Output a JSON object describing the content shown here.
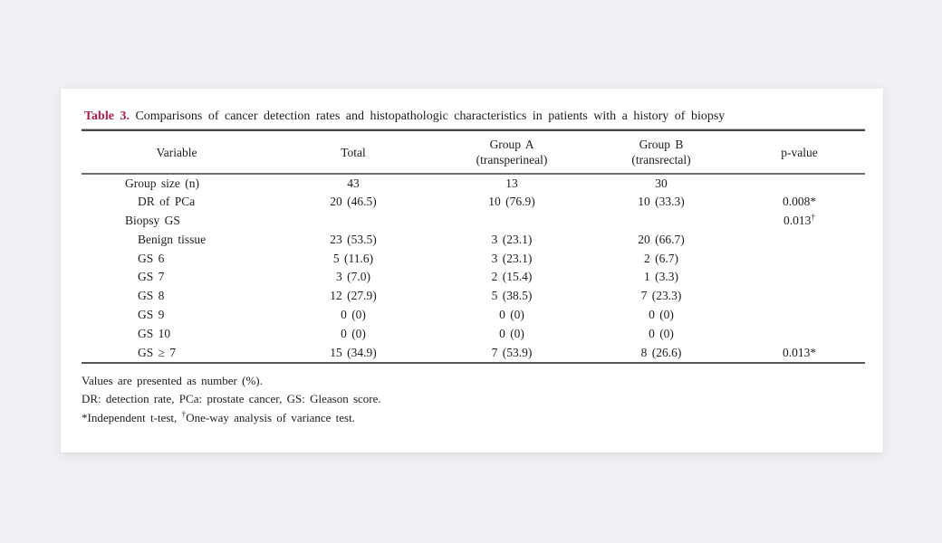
{
  "page": {
    "background_color": "#f0f1f4",
    "card_color": "#ffffff"
  },
  "table": {
    "title_label": "Table 3.",
    "title_label_color": "#ab1e47",
    "title_text": "Comparisons of cancer detection rates and histopathologic characteristics in patients with a history of biopsy",
    "columns": [
      {
        "label": "Variable",
        "sub": ""
      },
      {
        "label": "Total",
        "sub": ""
      },
      {
        "label": "Group A",
        "sub": "(transperineal)"
      },
      {
        "label": "Group B",
        "sub": "(transrectal)"
      },
      {
        "label": "p-value",
        "sub": ""
      }
    ],
    "rows": [
      {
        "variable": "Group size (n)",
        "indent": 1,
        "total": "43",
        "group_a": "13",
        "group_b": "30",
        "p": "",
        "p_sup": ""
      },
      {
        "variable": "DR of PCa",
        "indent": 2,
        "total": "20 (46.5)",
        "group_a": "10 (76.9)",
        "group_b": "10 (33.3)",
        "p": "0.008*",
        "p_sup": ""
      },
      {
        "variable": "Biopsy GS",
        "indent": 1,
        "total": "",
        "group_a": "",
        "group_b": "",
        "p": "0.013",
        "p_sup": "†"
      },
      {
        "variable": "Benign tissue",
        "indent": 2,
        "total": "23 (53.5)",
        "group_a": "3 (23.1)",
        "group_b": "20 (66.7)",
        "p": "",
        "p_sup": ""
      },
      {
        "variable": "GS 6",
        "indent": 2,
        "total": "5 (11.6)",
        "group_a": "3 (23.1)",
        "group_b": "2 (6.7)",
        "p": "",
        "p_sup": ""
      },
      {
        "variable": "GS 7",
        "indent": 2,
        "total": "3 (7.0)",
        "group_a": "2 (15.4)",
        "group_b": "1 (3.3)",
        "p": "",
        "p_sup": ""
      },
      {
        "variable": "GS 8",
        "indent": 2,
        "total": "12 (27.9)",
        "group_a": "5 (38.5)",
        "group_b": "7 (23.3)",
        "p": "",
        "p_sup": ""
      },
      {
        "variable": "GS 9",
        "indent": 2,
        "total": "0 (0)",
        "group_a": "0 (0)",
        "group_b": "0 (0)",
        "p": "",
        "p_sup": ""
      },
      {
        "variable": "GS 10",
        "indent": 2,
        "total": "0 (0)",
        "group_a": "0 (0)",
        "group_b": "0 (0)",
        "p": "",
        "p_sup": ""
      },
      {
        "variable": "GS ≥ 7",
        "indent": 2,
        "total": "15 (34.9)",
        "group_a": "7 (53.9)",
        "group_b": "8 (26.6)",
        "p": "0.013*",
        "p_sup": ""
      }
    ],
    "footnotes": [
      {
        "pre": "Values are presented as number (%).",
        "sup": "",
        "post": ""
      },
      {
        "pre": "DR: detection rate, PCa: prostate cancer, GS: Gleason score.",
        "sup": "",
        "post": ""
      },
      {
        "pre": "*Independent t-test, ",
        "sup": "†",
        "post": "One-way analysis of variance test."
      }
    ]
  }
}
